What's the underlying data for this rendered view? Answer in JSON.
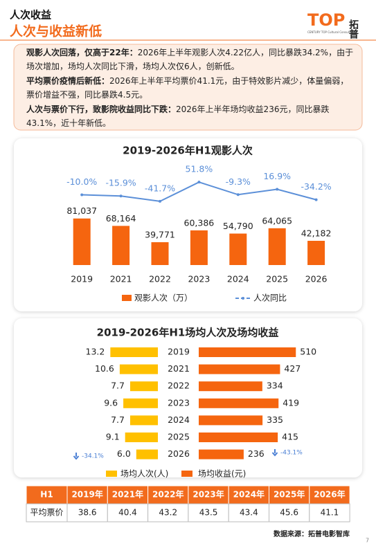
{
  "header": {
    "title": "人次收益",
    "subtitle": "人次与收益新低",
    "logo": "TOP",
    "logo_cn": "拓普",
    "tagline": "CENTURY TOP Cultural Consultation"
  },
  "summary": [
    {
      "lead": "观影人次回落，仅高于22年：",
      "text": "2026年上半年观影人次4.22亿人，同比暴跌34.2%，由于场次增加，场均人次同比下滑，场均人次仅6人，创新低。"
    },
    {
      "lead": "平均票价疫情后新低：",
      "text": "2026年上半年平均票价41.1元，由于特效影片减少，体量偏弱，票价增益不强，同比暴跌4.5元。"
    },
    {
      "lead": "人次与票价下行，致影院收益同比下跌：",
      "text": "2026年上半年场均收益236元，同比暴跌43.1%，近十年新低。"
    }
  ],
  "chart_data": [
    {
      "type": "bar-line",
      "title": "2019-2026年H1观影人次",
      "categories": [
        "2019",
        "2021",
        "2022",
        "2023",
        "2024",
        "2025",
        "2026"
      ],
      "ylim": [
        0,
        100000
      ],
      "y2lim": [
        -140,
        130
      ],
      "series": [
        {
          "name": "观影人次（万）",
          "color": "#f5650f",
          "values": [
            81037,
            68164,
            39771,
            60386,
            54790,
            64065,
            42182
          ],
          "value_labels": [
            "81,037",
            "68,164",
            "39,771",
            "60,386",
            "54,790",
            "64,065",
            "42,182"
          ]
        },
        {
          "name": "人次同比",
          "color": "#5b8fd8",
          "axis": "y2",
          "values": [
            -10.0,
            -15.9,
            -41.7,
            51.8,
            -9.3,
            16.9,
            -34.2
          ],
          "value_labels": [
            "-10.0%",
            "-15.9%",
            "-41.7%",
            "51.8%",
            "-9.3%",
            "16.9%",
            "-34.2%"
          ]
        }
      ]
    },
    {
      "type": "butterfly-bar",
      "title": "2019-2026年H1场均人次及场均收益",
      "categories": [
        "2019",
        "2021",
        "2022",
        "2023",
        "2024",
        "2025",
        "2026"
      ],
      "xlim": [
        0,
        15
      ],
      "x2lim": [
        0,
        600
      ],
      "series": [
        {
          "name": "场均人次(人)",
          "color": "#ffc000",
          "values": [
            13.2,
            10.6,
            7.7,
            9.6,
            7.7,
            9.1,
            6.0
          ],
          "value_labels": [
            "13.2",
            "10.6",
            "7.7",
            "9.6",
            "7.7",
            "9.1",
            "6.0"
          ]
        },
        {
          "name": "场均收益(元)",
          "color": "#f5650f",
          "values": [
            510,
            427,
            334,
            419,
            335,
            415,
            236
          ]
        }
      ],
      "annotations": [
        {
          "text": "-34.1%"
        },
        {
          "text": "-43.1%"
        }
      ]
    }
  ],
  "table": {
    "header": [
      "H1",
      "2019年",
      "2021年",
      "2022年",
      "2023年",
      "2024年",
      "2025年",
      "2026年"
    ],
    "rows": [
      [
        "平均票价",
        "38.6",
        "40.4",
        "43.2",
        "43.5",
        "43.4",
        "45.6",
        "41.1"
      ]
    ]
  },
  "footer": {
    "source": "数据来源：拓普电影智库",
    "page": "7"
  }
}
